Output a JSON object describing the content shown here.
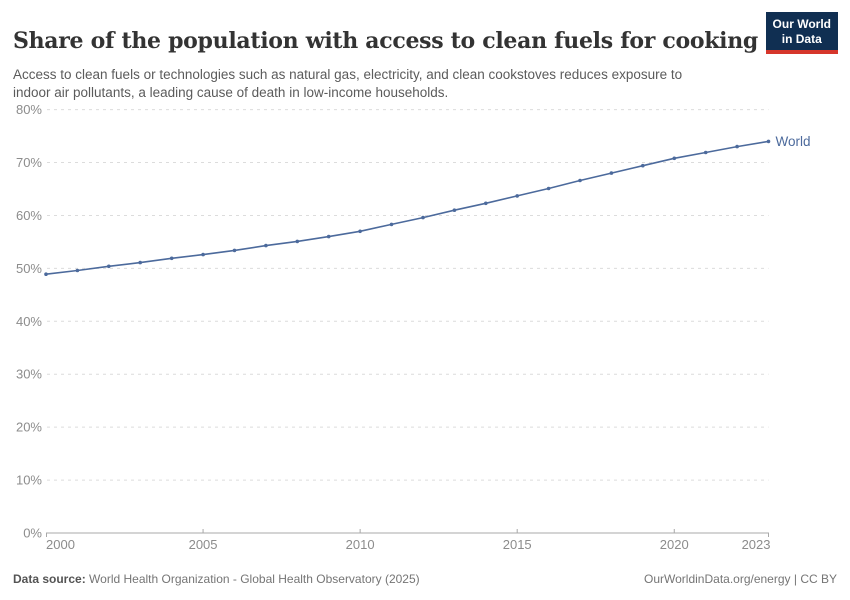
{
  "header": {
    "title": "Share of the population with access to clean fuels for cooking",
    "subtitle_line1": "Access to clean fuels or technologies such as natural gas, electricity, and clean cookstoves reduces exposure to",
    "subtitle_line2": "indoor air pollutants, a leading cause of death in low-income households."
  },
  "logo": {
    "line1": "Our World",
    "line2": "in Data"
  },
  "colors": {
    "logo_bg": "#102F52",
    "logo_stripe": "#D6362B",
    "series_line": "#4C6A9C",
    "gridline": "#dcdcdc",
    "axis": "#a8a8a8",
    "tick_label": "#8c8c8c"
  },
  "chart_data": {
    "type": "line",
    "title": "Share of the population with access to clean fuels for cooking",
    "x": [
      2000,
      2001,
      2002,
      2003,
      2004,
      2005,
      2006,
      2007,
      2008,
      2009,
      2010,
      2011,
      2012,
      2013,
      2014,
      2015,
      2016,
      2017,
      2018,
      2019,
      2020,
      2021,
      2022,
      2023
    ],
    "series": [
      {
        "name": "World",
        "color": "#4C6A9C",
        "values": [
          48.9,
          49.6,
          50.4,
          51.1,
          51.9,
          52.6,
          53.4,
          54.3,
          55.1,
          56.0,
          57.0,
          58.3,
          59.6,
          61.0,
          62.3,
          63.7,
          65.1,
          66.6,
          68.0,
          69.4,
          70.8,
          71.9,
          73.0,
          74.0
        ]
      }
    ],
    "xlabel": "",
    "ylabel": "",
    "ylim": [
      0,
      80
    ],
    "yticks": [
      0,
      10,
      20,
      30,
      40,
      50,
      60,
      70,
      80
    ],
    "xticks": [
      2000,
      2005,
      2010,
      2015,
      2020,
      2023
    ],
    "ytick_suffix": "%",
    "grid": true,
    "legend": "end-of-line-label"
  },
  "footer": {
    "data_source_label": "Data source:",
    "data_source_text": " World Health Organization - Global Health Observatory (2025)",
    "attribution": "OurWorldinData.org/energy | CC BY"
  }
}
